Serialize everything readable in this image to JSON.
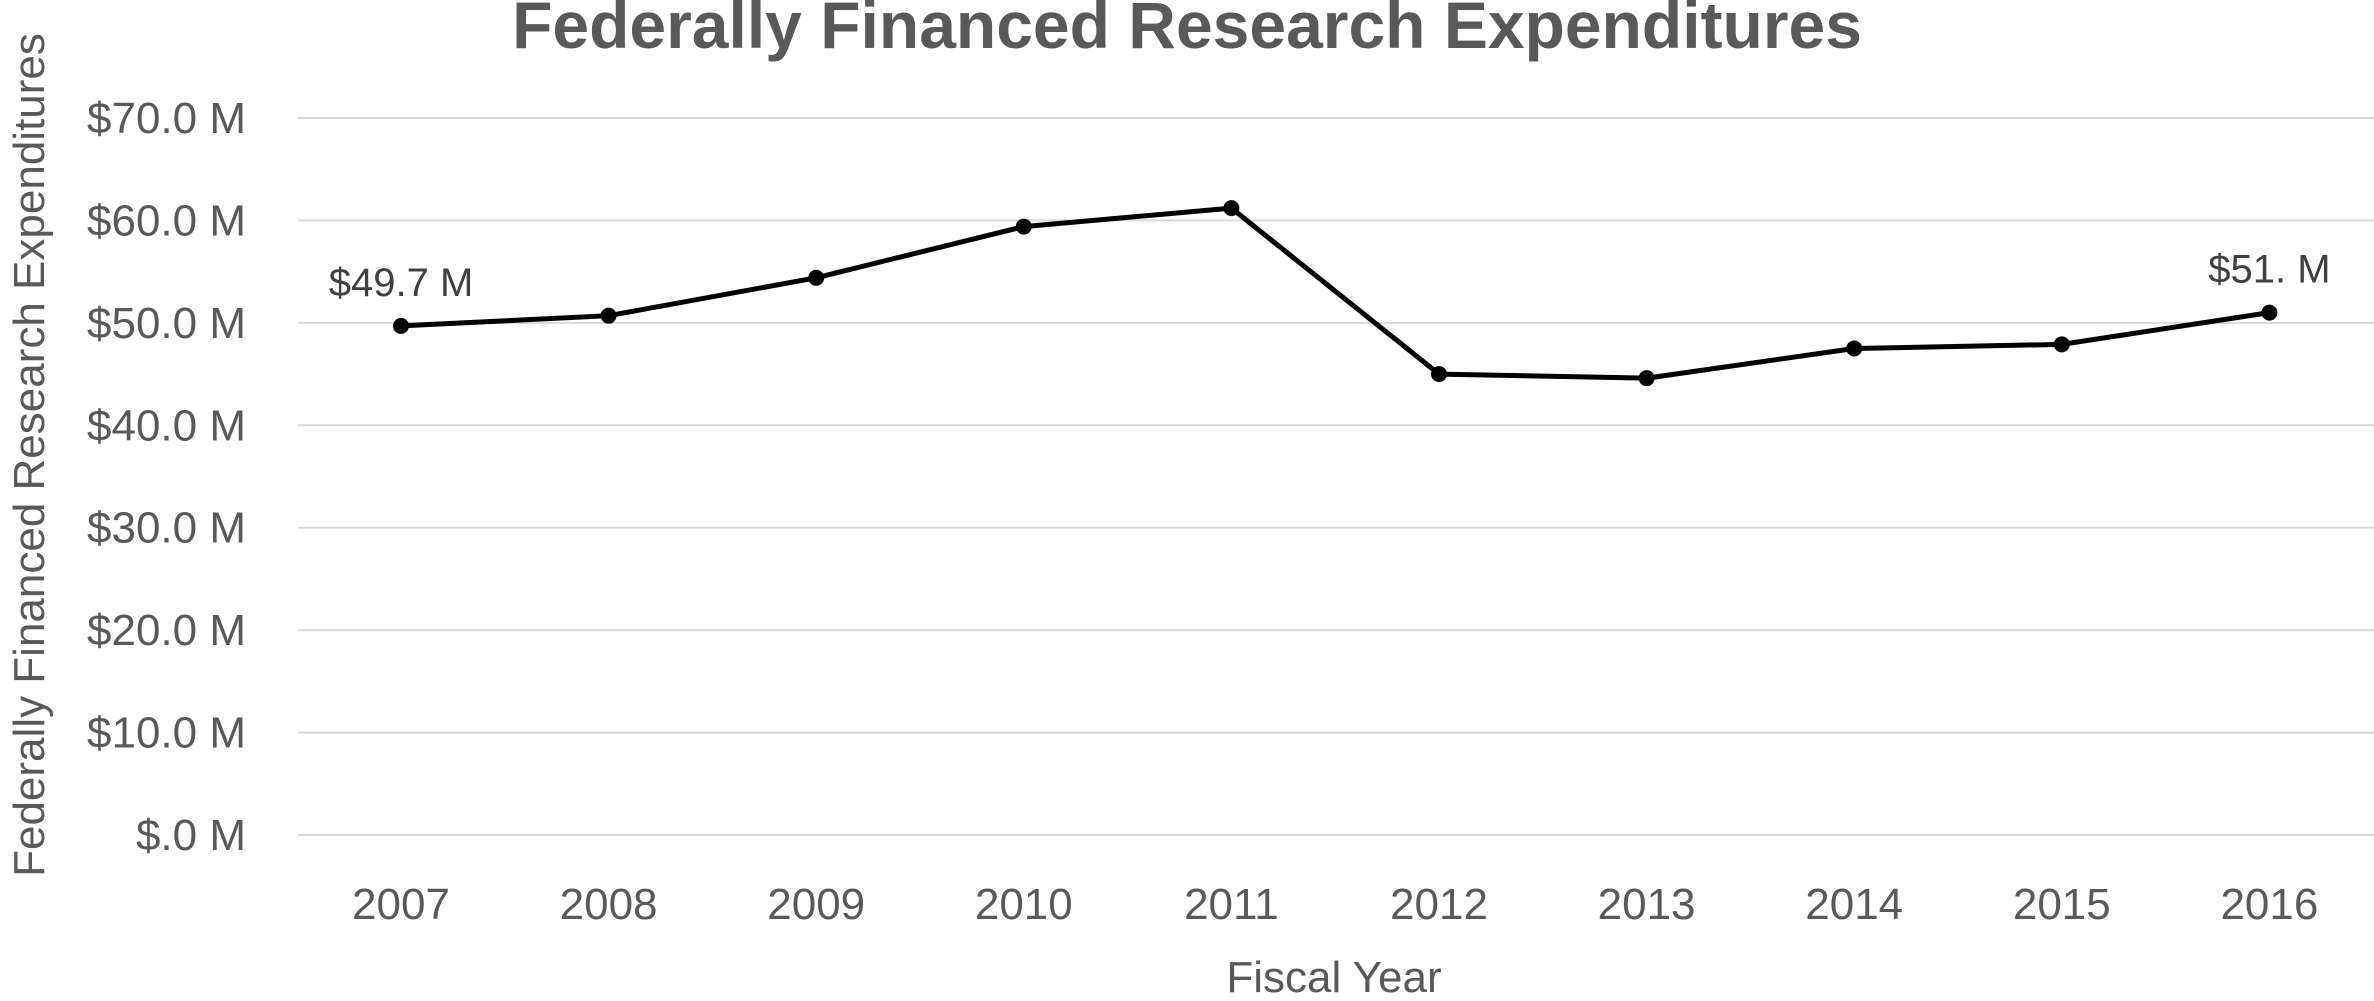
{
  "chart_data": {
    "type": "line",
    "title": "Federally Financed Research Expenditures",
    "xlabel": "Fiscal Year",
    "ylabel": "Federally Financed  Research Expenditures",
    "categories": [
      "2007",
      "2008",
      "2009",
      "2010",
      "2011",
      "2012",
      "2013",
      "2014",
      "2015",
      "2016"
    ],
    "series": [
      {
        "values": [
          49.7,
          50.7,
          54.4,
          59.4,
          61.2,
          45.0,
          44.6,
          47.5,
          47.9,
          51.0
        ],
        "color": "#000000"
      }
    ],
    "ylim": [
      0,
      70
    ],
    "yticks": [
      0,
      10,
      20,
      30,
      40,
      50,
      60,
      70
    ],
    "ytick_labels": [
      "$.0 M",
      "$10.0 M",
      "$20.0 M",
      "$30.0 M",
      "$40.0 M",
      "$50.0 M",
      "$60.0 M",
      "$70.0 M"
    ],
    "data_labels": [
      {
        "index": 0,
        "text": "$49.7 M"
      },
      {
        "index": 9,
        "text": "$51. M"
      }
    ],
    "grid": true,
    "legend": "none"
  }
}
